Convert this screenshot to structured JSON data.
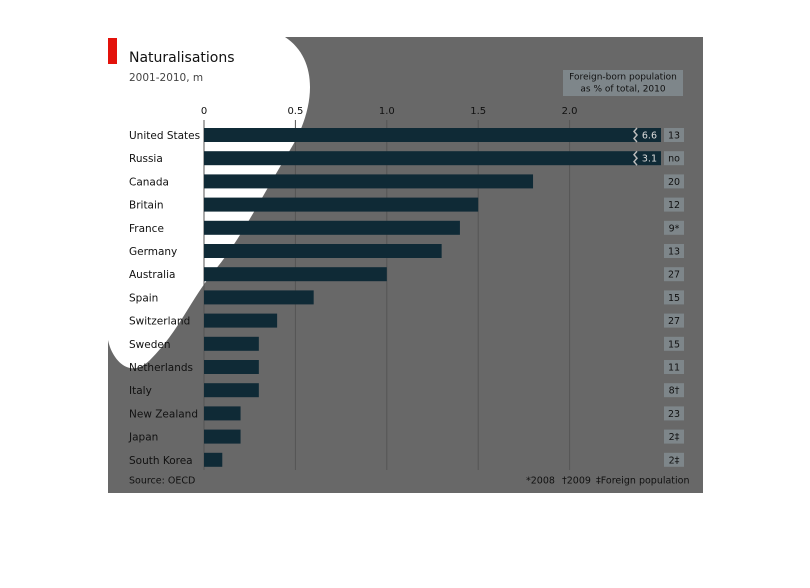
{
  "chart_data": {
    "type": "bar",
    "orientation": "horizontal",
    "title": "Naturalisations",
    "subtitle": "2001-2010, m",
    "categories": [
      "United States",
      "Russia",
      "Canada",
      "Britain",
      "France",
      "Germany",
      "Australia",
      "Spain",
      "Switzerland",
      "Sweden",
      "Netherlands",
      "Italy",
      "New Zealand",
      "Japan",
      "South Korea"
    ],
    "values": [
      6.6,
      3.1,
      1.8,
      1.5,
      1.4,
      1.3,
      1.0,
      0.6,
      0.4,
      0.3,
      0.3,
      0.3,
      0.2,
      0.2,
      0.1
    ],
    "value_labels": [
      "6.6",
      "3.1",
      null,
      null,
      null,
      null,
      null,
      null,
      null,
      null,
      null,
      null,
      null,
      null,
      null
    ],
    "color": "#0f2a36",
    "xlim": [
      0,
      2.5
    ],
    "xticks": [
      0,
      0.5,
      {
        "value": 1,
        "label": "1.0"
      },
      1.5,
      {
        "value": 2,
        "label": "2.0"
      }
    ],
    "grid": true,
    "side_column": {
      "title": [
        "Foreign-born population",
        "as % of total, 2010"
      ],
      "values": [
        "13",
        "no",
        "20",
        "12",
        "9*",
        "13",
        "27",
        "15",
        "27",
        "15",
        "11",
        "8†",
        "23",
        "2‡",
        "2‡"
      ]
    },
    "source": "Source: OECD",
    "footnotes": [
      "*2008",
      "†2009",
      "‡Foreign population"
    ]
  }
}
